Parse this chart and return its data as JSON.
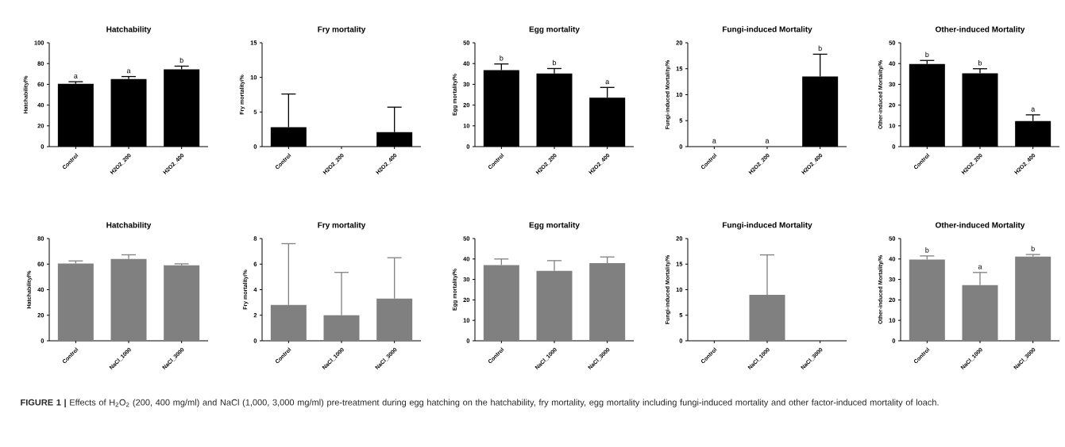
{
  "chart_data": [
    {
      "type": "bar",
      "title": "Hatchability",
      "ylabel": "Hatchability/%",
      "categories": [
        "Control",
        "H2O2_200",
        "H2O2_400"
      ],
      "values": [
        60.5,
        65,
        74.5
      ],
      "errors": [
        [
          60.5,
          62.5
        ],
        [
          65,
          67.5
        ],
        [
          74.5,
          77.5
        ]
      ],
      "color": "#000000",
      "ylim": [
        0,
        100
      ],
      "yticks": [
        0,
        20,
        40,
        60,
        80,
        100
      ],
      "annotations": [
        "a",
        "a",
        "b"
      ]
    },
    {
      "type": "bar",
      "title": "Fry mortality",
      "ylabel": "Fry mortality/%",
      "categories": [
        "Control",
        "H2O2_200",
        "H2O2_400"
      ],
      "values": [
        2.8,
        0,
        2.1
      ],
      "errors": [
        [
          2.8,
          7.6
        ],
        null,
        [
          2.1,
          5.7
        ]
      ],
      "color": "#000000",
      "ylim": [
        0,
        15
      ],
      "yticks": [
        0,
        5,
        10,
        15
      ]
    },
    {
      "type": "bar",
      "title": "Egg mortality",
      "ylabel": "Egg mortality/%",
      "categories": [
        "Control",
        "H2O2_200",
        "H2O2_400"
      ],
      "values": [
        36.8,
        35.2,
        23.6
      ],
      "errors": [
        [
          36.8,
          39.8
        ],
        [
          35.2,
          37.6
        ],
        [
          23.6,
          28.5
        ]
      ],
      "color": "#000000",
      "ylim": [
        0,
        50
      ],
      "yticks": [
        0,
        10,
        20,
        30,
        40,
        50
      ],
      "annotations": [
        "b",
        "b",
        "a"
      ]
    },
    {
      "type": "bar",
      "title": "Fungi-induced Mortality",
      "ylabel": "Fungi-induced Mortality/%",
      "categories": [
        "Control",
        "H2O2_200",
        "H2O2_400"
      ],
      "values": [
        0,
        0,
        13.5
      ],
      "errors": [
        null,
        null,
        [
          13.5,
          17.8
        ]
      ],
      "color": "#000000",
      "ylim": [
        0,
        20
      ],
      "yticks": [
        0,
        5,
        10,
        15,
        20
      ],
      "annotations": [
        "a",
        "a",
        "b"
      ]
    },
    {
      "type": "bar",
      "title": "Other-induced Mortality",
      "ylabel": "Other-induced Mortality/%",
      "categories": [
        "Control",
        "H2O2_200",
        "H2O2_400"
      ],
      "values": [
        39.8,
        35.3,
        12.3
      ],
      "errors": [
        [
          39.8,
          41.5
        ],
        [
          35.3,
          37.5
        ],
        [
          12.3,
          15.3
        ]
      ],
      "color": "#000000",
      "ylim": [
        0,
        50
      ],
      "yticks": [
        0,
        10,
        20,
        30,
        40,
        50
      ],
      "annotations": [
        "b",
        "b",
        "a"
      ]
    },
    {
      "type": "bar",
      "title": "Hatchability",
      "ylabel": "Hatchability/%",
      "categories": [
        "Control",
        "NaCl_1000",
        "NaCl_3000"
      ],
      "values": [
        60.5,
        64,
        59
      ],
      "errors": [
        [
          60.5,
          62.5
        ],
        [
          64,
          67.3
        ],
        [
          59,
          60.2
        ]
      ],
      "color": "#808080",
      "ylim": [
        0,
        80
      ],
      "yticks": [
        0,
        20,
        40,
        60,
        80
      ]
    },
    {
      "type": "bar",
      "title": "Fry mortality",
      "ylabel": "Fry mortality/%",
      "categories": [
        "Control",
        "NaCl_1000",
        "NaCl_3000"
      ],
      "values": [
        2.8,
        2.0,
        3.3
      ],
      "errors": [
        [
          2.8,
          7.6
        ],
        [
          2.0,
          5.35
        ],
        [
          3.3,
          6.5
        ]
      ],
      "color": "#808080",
      "ylim": [
        0,
        8
      ],
      "yticks": [
        0,
        2,
        4,
        6,
        8
      ]
    },
    {
      "type": "bar",
      "title": "Egg mortality",
      "ylabel": "Egg mortality/%",
      "categories": [
        "Control",
        "NaCl_1000",
        "NaCl_3000"
      ],
      "values": [
        37,
        34.2,
        38
      ],
      "errors": [
        [
          37,
          40
        ],
        [
          34.2,
          39.2
        ],
        [
          38,
          41
        ]
      ],
      "color": "#808080",
      "ylim": [
        0,
        50
      ],
      "yticks": [
        0,
        10,
        20,
        30,
        40,
        50
      ]
    },
    {
      "type": "bar",
      "title": "Fungi-induced Mortality",
      "ylabel": "Fungi-induced Mortality/%",
      "categories": [
        "Control",
        "NaCl_1000",
        "NaCl_3000"
      ],
      "values": [
        0,
        9,
        0
      ],
      "errors": [
        null,
        [
          9,
          16.8
        ],
        null
      ],
      "color": "#808080",
      "ylim": [
        0,
        20
      ],
      "yticks": [
        0,
        5,
        10,
        15,
        20
      ]
    },
    {
      "type": "bar",
      "title": "Other-induced Mortality",
      "ylabel": "Other-induced Mortality/%",
      "categories": [
        "Control",
        "NaCl_1000",
        "NaCl_3000"
      ],
      "values": [
        39.7,
        27.2,
        41.2
      ],
      "errors": [
        [
          39.7,
          41.5
        ],
        [
          27.2,
          33.4
        ],
        [
          41.2,
          42.2
        ]
      ],
      "color": "#808080",
      "ylim": [
        0,
        50
      ],
      "yticks": [
        0,
        10,
        20,
        30,
        40,
        50
      ],
      "annotations": [
        "b",
        "a",
        "b",
        "**FIGURE 1 |** Effects of H$_{2}$O$_{2}$ (200, 400 mg/ml) and NaCl (1,000, 3,000 mg/ml) pre-treatment during egg hatching on the hatchability, fry mortality, egg mortality including fungi-induced mortality and other factor-induced mortality of loach."
      ]
    }
  ]
}
